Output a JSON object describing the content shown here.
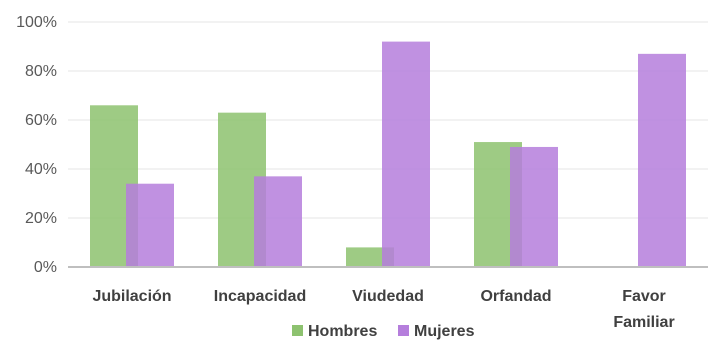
{
  "chart_data": {
    "type": "bar",
    "categories": [
      [
        "Jubilación"
      ],
      [
        "Incapacidad"
      ],
      [
        "Viudedad"
      ],
      [
        "Orfandad"
      ],
      [
        "Favor",
        "Familiar"
      ]
    ],
    "series": [
      {
        "name": "Hombres",
        "color": "#8DC26F",
        "values": [
          66,
          63,
          8,
          51,
          0
        ]
      },
      {
        "name": "Mujeres",
        "color": "#B57EDC",
        "values": [
          34,
          37,
          92,
          49,
          87
        ]
      }
    ],
    "y_ticks": [
      "0%",
      "20%",
      "40%",
      "60%",
      "80%",
      "100%"
    ],
    "ylim": [
      0,
      100
    ],
    "grid": true,
    "legend_position": "bottom"
  }
}
